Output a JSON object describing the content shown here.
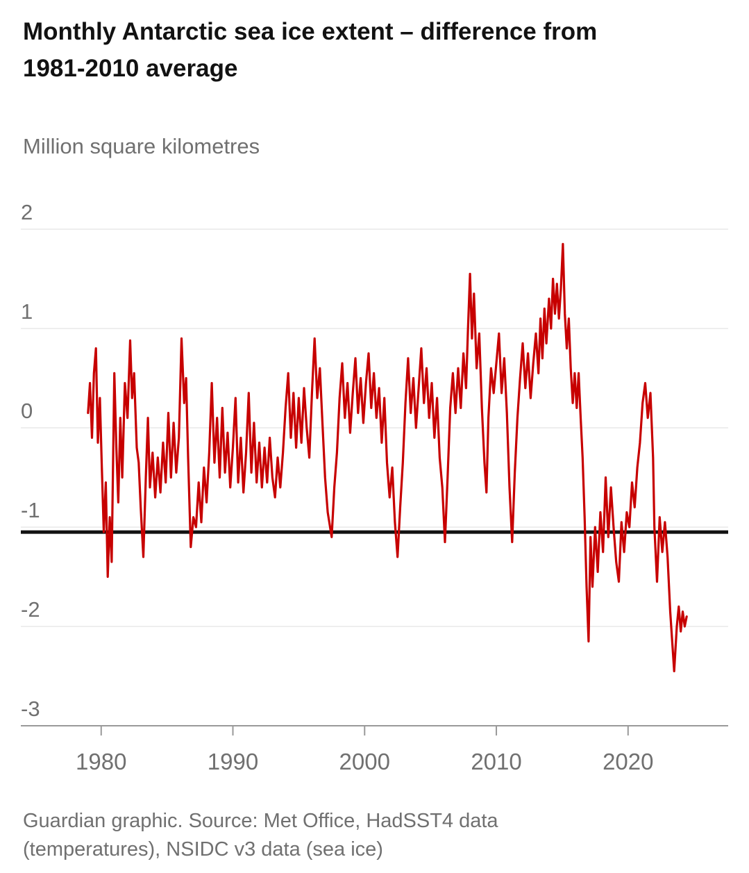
{
  "chart_data": {
    "type": "line",
    "title": "Monthly Antarctic sea ice extent – difference from 1981-2010 average",
    "ylabel": "Million square kilometres",
    "xlabel": "",
    "source": "Guardian graphic. Source: Met Office, HadSST4 data (temperatures), NSIDC v3 data (sea ice)",
    "grid": "horizontal",
    "legend": "none",
    "xlim": [
      1973.9,
      2027.6
    ],
    "ylim": [
      -3,
      2
    ],
    "yticks": [
      2,
      1,
      0,
      -1,
      -2,
      -3
    ],
    "xticks": [
      1980,
      1990,
      2000,
      2010,
      2020
    ],
    "reference_line": {
      "value": -1.05,
      "color": "#121212"
    },
    "colors": {
      "series": "#c70000",
      "grid": "#dcdcdc",
      "axis": "#999999",
      "tick_label": "#707070",
      "background": "#ffffff"
    },
    "series": [
      {
        "name": "Monthly Antarctic sea ice extent anomaly",
        "color": "#c70000",
        "points": [
          [
            1979,
            0.15
          ],
          [
            1979.15,
            0.45
          ],
          [
            1979.3,
            -0.1
          ],
          [
            1979.45,
            0.55
          ],
          [
            1979.6,
            0.8
          ],
          [
            1979.75,
            -0.15
          ],
          [
            1979.9,
            0.3
          ],
          [
            1980.05,
            -0.4
          ],
          [
            1980.2,
            -1.05
          ],
          [
            1980.35,
            -0.55
          ],
          [
            1980.5,
            -1.5
          ],
          [
            1980.65,
            -0.9
          ],
          [
            1980.8,
            -1.35
          ],
          [
            1981,
            0.55
          ],
          [
            1981.15,
            -0.2
          ],
          [
            1981.3,
            -0.75
          ],
          [
            1981.45,
            0.1
          ],
          [
            1981.6,
            -0.5
          ],
          [
            1981.8,
            0.45
          ],
          [
            1982,
            0.1
          ],
          [
            1982.2,
            0.88
          ],
          [
            1982.35,
            0.3
          ],
          [
            1982.5,
            0.55
          ],
          [
            1982.7,
            -0.2
          ],
          [
            1982.85,
            -0.35
          ],
          [
            1983,
            -0.8
          ],
          [
            1983.2,
            -1.3
          ],
          [
            1983.4,
            -0.45
          ],
          [
            1983.55,
            0.1
          ],
          [
            1983.7,
            -0.6
          ],
          [
            1983.9,
            -0.25
          ],
          [
            1984.1,
            -0.7
          ],
          [
            1984.3,
            -0.3
          ],
          [
            1984.5,
            -0.65
          ],
          [
            1984.7,
            -0.15
          ],
          [
            1984.9,
            -0.55
          ],
          [
            1985.1,
            0.15
          ],
          [
            1985.3,
            -0.5
          ],
          [
            1985.5,
            0.05
          ],
          [
            1985.7,
            -0.45
          ],
          [
            1985.9,
            -0.1
          ],
          [
            1986.1,
            0.9
          ],
          [
            1986.3,
            0.25
          ],
          [
            1986.45,
            0.5
          ],
          [
            1986.6,
            -0.3
          ],
          [
            1986.8,
            -1.2
          ],
          [
            1987,
            -0.9
          ],
          [
            1987.2,
            -1
          ],
          [
            1987.4,
            -0.55
          ],
          [
            1987.6,
            -0.95
          ],
          [
            1987.8,
            -0.4
          ],
          [
            1988,
            -0.75
          ],
          [
            1988.2,
            -0.25
          ],
          [
            1988.4,
            0.45
          ],
          [
            1988.6,
            -0.35
          ],
          [
            1988.8,
            0.1
          ],
          [
            1989,
            -0.5
          ],
          [
            1989.2,
            0.2
          ],
          [
            1989.4,
            -0.45
          ],
          [
            1989.6,
            -0.05
          ],
          [
            1989.8,
            -0.6
          ],
          [
            1990,
            -0.2
          ],
          [
            1990.2,
            0.3
          ],
          [
            1990.4,
            -0.55
          ],
          [
            1990.6,
            -0.1
          ],
          [
            1990.8,
            -0.65
          ],
          [
            1991,
            -0.25
          ],
          [
            1991.2,
            0.35
          ],
          [
            1991.4,
            -0.45
          ],
          [
            1991.6,
            0.05
          ],
          [
            1991.8,
            -0.55
          ],
          [
            1992,
            -0.15
          ],
          [
            1992.2,
            -0.6
          ],
          [
            1992.4,
            -0.2
          ],
          [
            1992.6,
            -0.55
          ],
          [
            1992.8,
            -0.1
          ],
          [
            1993,
            -0.5
          ],
          [
            1993.2,
            -0.7
          ],
          [
            1993.4,
            -0.3
          ],
          [
            1993.6,
            -0.6
          ],
          [
            1993.8,
            -0.25
          ],
          [
            1994,
            0.2
          ],
          [
            1994.2,
            0.55
          ],
          [
            1994.4,
            -0.1
          ],
          [
            1994.6,
            0.35
          ],
          [
            1994.8,
            -0.2
          ],
          [
            1995,
            0.3
          ],
          [
            1995.2,
            -0.15
          ],
          [
            1995.4,
            0.4
          ],
          [
            1995.6,
            0
          ],
          [
            1995.8,
            -0.3
          ],
          [
            1996,
            0.35
          ],
          [
            1996.2,
            0.9
          ],
          [
            1996.4,
            0.3
          ],
          [
            1996.6,
            0.6
          ],
          [
            1996.8,
            0.05
          ],
          [
            1997,
            -0.5
          ],
          [
            1997.2,
            -0.85
          ],
          [
            1997.5,
            -1.1
          ],
          [
            1997.7,
            -0.6
          ],
          [
            1997.9,
            -0.25
          ],
          [
            1998.1,
            0.3
          ],
          [
            1998.3,
            0.65
          ],
          [
            1998.5,
            0.1
          ],
          [
            1998.7,
            0.45
          ],
          [
            1998.9,
            -0.05
          ],
          [
            1999.1,
            0.35
          ],
          [
            1999.3,
            0.7
          ],
          [
            1999.5,
            0.15
          ],
          [
            1999.7,
            0.5
          ],
          [
            1999.9,
            0.05
          ],
          [
            2000.1,
            0.45
          ],
          [
            2000.3,
            0.75
          ],
          [
            2000.5,
            0.2
          ],
          [
            2000.7,
            0.55
          ],
          [
            2000.9,
            0.1
          ],
          [
            2001.1,
            0.4
          ],
          [
            2001.3,
            -0.15
          ],
          [
            2001.5,
            0.3
          ],
          [
            2001.7,
            -0.35
          ],
          [
            2001.9,
            -0.7
          ],
          [
            2002.1,
            -0.4
          ],
          [
            2002.3,
            -0.95
          ],
          [
            2002.5,
            -1.3
          ],
          [
            2002.7,
            -0.8
          ],
          [
            2002.9,
            -0.35
          ],
          [
            2003.1,
            0.25
          ],
          [
            2003.3,
            0.7
          ],
          [
            2003.5,
            0.15
          ],
          [
            2003.7,
            0.5
          ],
          [
            2003.9,
            0
          ],
          [
            2004.1,
            0.4
          ],
          [
            2004.3,
            0.8
          ],
          [
            2004.5,
            0.25
          ],
          [
            2004.7,
            0.6
          ],
          [
            2004.9,
            0.1
          ],
          [
            2005.1,
            0.45
          ],
          [
            2005.3,
            -0.1
          ],
          [
            2005.5,
            0.3
          ],
          [
            2005.7,
            -0.3
          ],
          [
            2005.9,
            -0.6
          ],
          [
            2006.1,
            -1.15
          ],
          [
            2006.3,
            -0.5
          ],
          [
            2006.5,
            0.2
          ],
          [
            2006.7,
            0.55
          ],
          [
            2006.9,
            0.15
          ],
          [
            2007.1,
            0.6
          ],
          [
            2007.3,
            0.2
          ],
          [
            2007.5,
            0.75
          ],
          [
            2007.7,
            0.4
          ],
          [
            2007.85,
            1
          ],
          [
            2008,
            1.55
          ],
          [
            2008.15,
            0.9
          ],
          [
            2008.3,
            1.35
          ],
          [
            2008.5,
            0.6
          ],
          [
            2008.7,
            0.95
          ],
          [
            2008.9,
            0.2
          ],
          [
            2009.1,
            -0.35
          ],
          [
            2009.25,
            -0.65
          ],
          [
            2009.4,
            0.1
          ],
          [
            2009.6,
            0.6
          ],
          [
            2009.8,
            0.35
          ],
          [
            2010,
            0.65
          ],
          [
            2010.2,
            0.95
          ],
          [
            2010.4,
            0.35
          ],
          [
            2010.6,
            0.7
          ],
          [
            2010.8,
            0.15
          ],
          [
            2011,
            -0.6
          ],
          [
            2011.2,
            -1.15
          ],
          [
            2011.4,
            -0.45
          ],
          [
            2011.6,
            0.1
          ],
          [
            2011.8,
            0.5
          ],
          [
            2012,
            0.85
          ],
          [
            2012.2,
            0.4
          ],
          [
            2012.4,
            0.75
          ],
          [
            2012.6,
            0.3
          ],
          [
            2012.8,
            0.65
          ],
          [
            2013,
            0.95
          ],
          [
            2013.2,
            0.55
          ],
          [
            2013.35,
            1.1
          ],
          [
            2013.5,
            0.7
          ],
          [
            2013.65,
            1.2
          ],
          [
            2013.8,
            0.85
          ],
          [
            2014,
            1.3
          ],
          [
            2014.15,
            1
          ],
          [
            2014.3,
            1.5
          ],
          [
            2014.45,
            1.15
          ],
          [
            2014.6,
            1.45
          ],
          [
            2014.75,
            1.1
          ],
          [
            2014.9,
            1.4
          ],
          [
            2015.05,
            1.85
          ],
          [
            2015.2,
            1.15
          ],
          [
            2015.35,
            0.8
          ],
          [
            2015.5,
            1.1
          ],
          [
            2015.65,
            0.6
          ],
          [
            2015.8,
            0.25
          ],
          [
            2015.95,
            0.55
          ],
          [
            2016.1,
            0.2
          ],
          [
            2016.25,
            0.55
          ],
          [
            2016.4,
            0.1
          ],
          [
            2016.55,
            -0.3
          ],
          [
            2016.7,
            -0.9
          ],
          [
            2016.85,
            -1.6
          ],
          [
            2017,
            -2.15
          ],
          [
            2017.15,
            -1.1
          ],
          [
            2017.3,
            -1.6
          ],
          [
            2017.5,
            -1
          ],
          [
            2017.7,
            -1.45
          ],
          [
            2017.9,
            -0.85
          ],
          [
            2018.1,
            -1.25
          ],
          [
            2018.3,
            -0.5
          ],
          [
            2018.5,
            -1.1
          ],
          [
            2018.7,
            -0.6
          ],
          [
            2018.9,
            -1
          ],
          [
            2019.1,
            -1.35
          ],
          [
            2019.3,
            -1.55
          ],
          [
            2019.5,
            -0.95
          ],
          [
            2019.7,
            -1.25
          ],
          [
            2019.9,
            -0.85
          ],
          [
            2020.1,
            -1
          ],
          [
            2020.3,
            -0.55
          ],
          [
            2020.5,
            -0.8
          ],
          [
            2020.7,
            -0.4
          ],
          [
            2020.9,
            -0.15
          ],
          [
            2021.1,
            0.25
          ],
          [
            2021.3,
            0.45
          ],
          [
            2021.5,
            0.1
          ],
          [
            2021.7,
            0.35
          ],
          [
            2021.9,
            -0.3
          ],
          [
            2022,
            -1
          ],
          [
            2022.2,
            -1.55
          ],
          [
            2022.4,
            -0.9
          ],
          [
            2022.6,
            -1.25
          ],
          [
            2022.8,
            -0.95
          ],
          [
            2023,
            -1.3
          ],
          [
            2023.2,
            -1.85
          ],
          [
            2023.5,
            -2.45
          ],
          [
            2023.7,
            -2
          ],
          [
            2023.85,
            -1.8
          ],
          [
            2024,
            -2.05
          ],
          [
            2024.15,
            -1.85
          ],
          [
            2024.3,
            -2
          ],
          [
            2024.45,
            -1.9
          ]
        ]
      }
    ]
  }
}
